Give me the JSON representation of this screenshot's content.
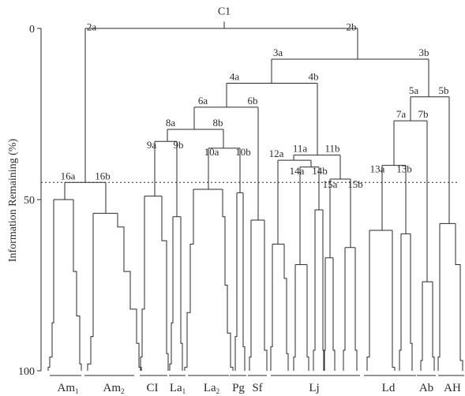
{
  "axis": {
    "ylabel": "Information Remaining (%)",
    "ticks": [
      {
        "value": 0,
        "label": "0"
      },
      {
        "value": 50,
        "label": "50"
      },
      {
        "value": 100,
        "label": "100"
      }
    ],
    "range": [
      0,
      100
    ],
    "cut_level": 45
  },
  "root_label": "C1",
  "nodes": [
    {
      "id": "2a",
      "level": 0
    },
    {
      "id": "2b",
      "level": 0
    },
    {
      "id": "3a",
      "level": 9
    },
    {
      "id": "3b",
      "level": 9
    },
    {
      "id": "4a",
      "level": 16
    },
    {
      "id": "4b",
      "level": 16
    },
    {
      "id": "5a",
      "level": 20
    },
    {
      "id": "5b",
      "level": 20
    },
    {
      "id": "6a",
      "level": 23
    },
    {
      "id": "6b",
      "level": 23
    },
    {
      "id": "7a",
      "level": 27
    },
    {
      "id": "7b",
      "level": 27
    },
    {
      "id": "8a",
      "level": 29.5
    },
    {
      "id": "8b",
      "level": 29.5
    },
    {
      "id": "9a",
      "level": 33
    },
    {
      "id": "9b",
      "level": 33
    },
    {
      "id": "10a",
      "level": 35
    },
    {
      "id": "10b",
      "level": 35
    },
    {
      "id": "11a",
      "level": 37
    },
    {
      "id": "11b",
      "level": 37
    },
    {
      "id": "12a",
      "level": 38.5
    },
    {
      "id": "13a",
      "level": 40
    },
    {
      "id": "13b",
      "level": 40
    },
    {
      "id": "14a",
      "level": 40.5
    },
    {
      "id": "14b",
      "level": 40.5
    },
    {
      "id": "15a",
      "level": 44
    },
    {
      "id": "15b",
      "level": 44
    },
    {
      "id": "16a",
      "level": 45
    },
    {
      "id": "16b",
      "level": 45
    }
  ],
  "groups": [
    {
      "name": "Am",
      "sub": "1"
    },
    {
      "name": "Am",
      "sub": "2"
    },
    {
      "name": "CI",
      "sub": ""
    },
    {
      "name": "La",
      "sub": "1"
    },
    {
      "name": "La",
      "sub": "2"
    },
    {
      "name": "Pg",
      "sub": ""
    },
    {
      "name": "Sf",
      "sub": ""
    },
    {
      "name": "Lj",
      "sub": ""
    },
    {
      "name": "Ld",
      "sub": ""
    },
    {
      "name": "Ab",
      "sub": ""
    },
    {
      "name": "AH",
      "sub": ""
    }
  ]
}
